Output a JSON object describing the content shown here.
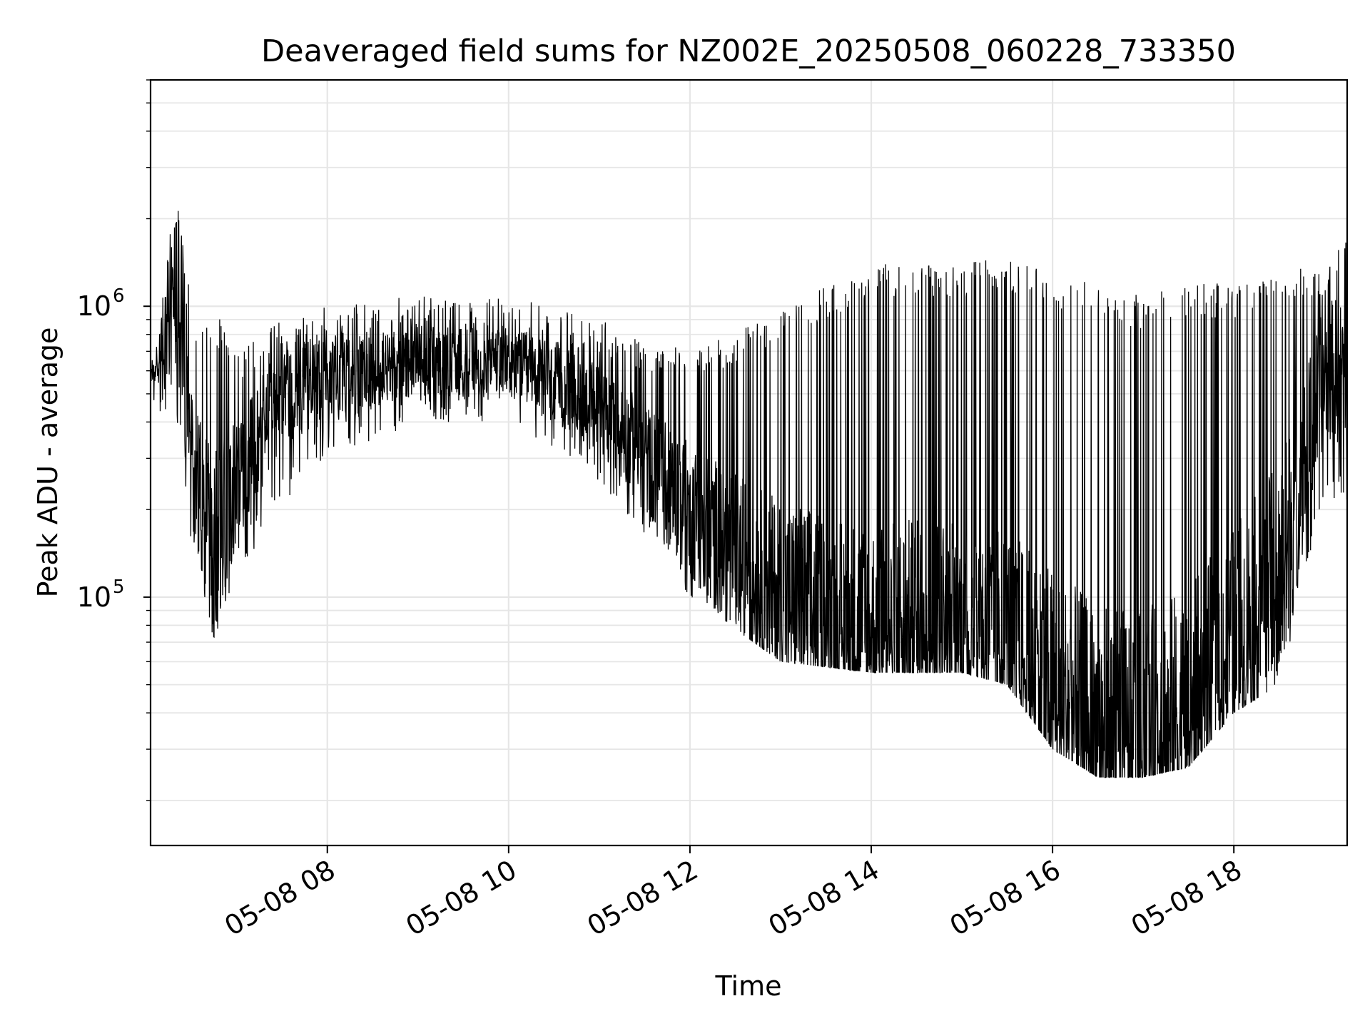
{
  "chart_data": {
    "type": "line",
    "title": "Deaveraged field sums for NZ002E_20250508_060228_733350",
    "xlabel": "Time",
    "ylabel": "Peak ADU - average",
    "yscale": "log",
    "ylim": [
      14000,
      6000000
    ],
    "xlim": [
      "05-08 06:03",
      "05-08 19:15"
    ],
    "grid": true,
    "line_color": "#000000",
    "x_ticks": [
      {
        "label": "05-08 08",
        "value": "05-08 08:00"
      },
      {
        "label": "05-08 10",
        "value": "05-08 10:00"
      },
      {
        "label": "05-08 12",
        "value": "05-08 12:00"
      },
      {
        "label": "05-08 14",
        "value": "05-08 14:00"
      },
      {
        "label": "05-08 16",
        "value": "05-08 16:00"
      },
      {
        "label": "05-08 18",
        "value": "05-08 18:00"
      }
    ],
    "y_ticks": [
      {
        "base": "10",
        "exp": "5",
        "value": 100000
      },
      {
        "base": "10",
        "exp": "6",
        "value": 1000000
      }
    ],
    "series_profile": {
      "x": [
        "05-08 06:03",
        "05-08 06:20",
        "05-08 06:30",
        "05-08 06:45",
        "05-08 07:00",
        "05-08 07:30",
        "05-08 08:00",
        "05-08 09:00",
        "05-08 10:00",
        "05-08 11:00",
        "05-08 12:00",
        "05-08 13:00",
        "05-08 14:00",
        "05-08 15:00",
        "05-08 15:30",
        "05-08 16:00",
        "05-08 16:30",
        "05-08 17:00",
        "05-08 17:30",
        "05-08 18:00",
        "05-08 18:30",
        "05-08 19:00",
        "05-08 19:15"
      ],
      "upper": [
        600000,
        2500000,
        1000000,
        1000000,
        700000,
        900000,
        1000000,
        1100000,
        1100000,
        900000,
        700000,
        1000000,
        1400000,
        1400000,
        1500000,
        1300000,
        1200000,
        1100000,
        1200000,
        1200000,
        1300000,
        1400000,
        2000000
      ],
      "lower": [
        450000,
        400000,
        150000,
        70000,
        120000,
        200000,
        300000,
        400000,
        400000,
        250000,
        100000,
        60000,
        55000,
        55000,
        50000,
        30000,
        24000,
        24000,
        26000,
        40000,
        50000,
        200000,
        200000
      ],
      "center": [
        550000,
        1000000,
        300000,
        150000,
        250000,
        500000,
        550000,
        650000,
        650000,
        450000,
        200000,
        100000,
        75000,
        80000,
        70000,
        45000,
        32000,
        32000,
        38000,
        70000,
        120000,
        600000,
        600000
      ]
    }
  }
}
